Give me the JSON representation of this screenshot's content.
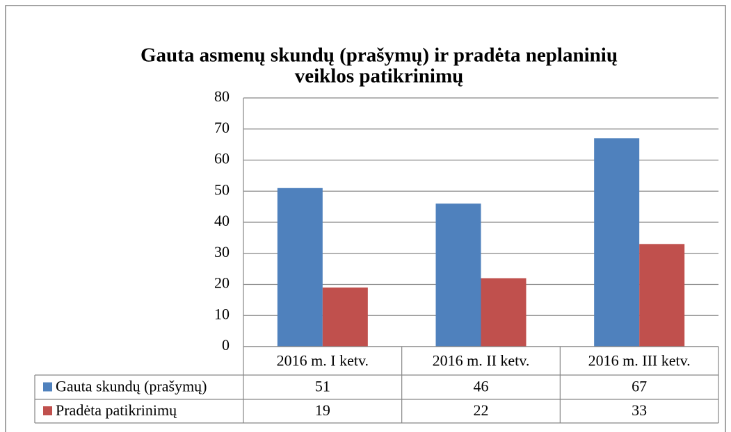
{
  "chart_data": {
    "type": "bar",
    "title": [
      "Gauta asmenų skundų (prašymų) ir pradėta neplaninių",
      "veiklos patikrinimų"
    ],
    "categories": [
      "2016 m. I ketv.",
      "2016 m. II ketv.",
      "2016 m. III ketv."
    ],
    "series": [
      {
        "name": "Gauta skundų (prašymų)",
        "color": "#4f81bd",
        "values": [
          51,
          46,
          67
        ]
      },
      {
        "name": "Pradėta patikrinimų",
        "color": "#c0504d",
        "values": [
          19,
          22,
          33
        ]
      }
    ],
    "ylim": [
      0,
      80
    ],
    "yticks": [
      0,
      10,
      20,
      30,
      40,
      50,
      60,
      70,
      80
    ],
    "grid": true,
    "data_table": true
  }
}
